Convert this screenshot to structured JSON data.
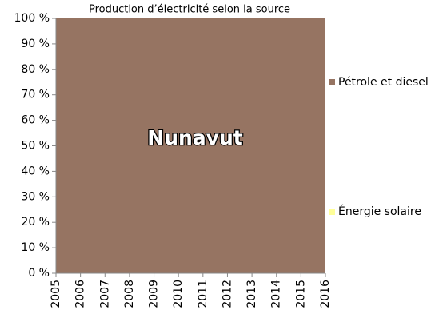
{
  "chart_data": {
    "type": "stacked_area",
    "title": "Production d’électricité selon la source",
    "annotation": "Nunavut",
    "x": [
      2005,
      2006,
      2007,
      2008,
      2009,
      2010,
      2011,
      2012,
      2013,
      2014,
      2015,
      2016
    ],
    "xlim": [
      2005,
      2016
    ],
    "xticks": [
      2005,
      2006,
      2007,
      2008,
      2009,
      2010,
      2011,
      2012,
      2013,
      2014,
      2015,
      2016
    ],
    "ylim": [
      0,
      100
    ],
    "yticks": [
      {
        "value": 0,
        "label": "0 %"
      },
      {
        "value": 10,
        "label": "10 %"
      },
      {
        "value": 20,
        "label": "20 %"
      },
      {
        "value": 30,
        "label": "30 %"
      },
      {
        "value": 40,
        "label": "40 %"
      },
      {
        "value": 50,
        "label": "50 %"
      },
      {
        "value": 60,
        "label": "60 %"
      },
      {
        "value": 70,
        "label": "70 %"
      },
      {
        "value": 80,
        "label": "80 %"
      },
      {
        "value": 90,
        "label": "90 %"
      },
      {
        "value": 100,
        "label": "100 %"
      }
    ],
    "series": [
      {
        "name": "Pétrole et diesel",
        "color": "#967462",
        "values": [
          100,
          100,
          100,
          100,
          100,
          100,
          100,
          100,
          100,
          100,
          100,
          100
        ]
      },
      {
        "name": "Énergie solaire",
        "color": "#ffff99",
        "values": [
          0,
          0,
          0,
          0,
          0,
          0,
          0,
          0,
          0,
          0,
          0,
          0
        ]
      }
    ]
  }
}
